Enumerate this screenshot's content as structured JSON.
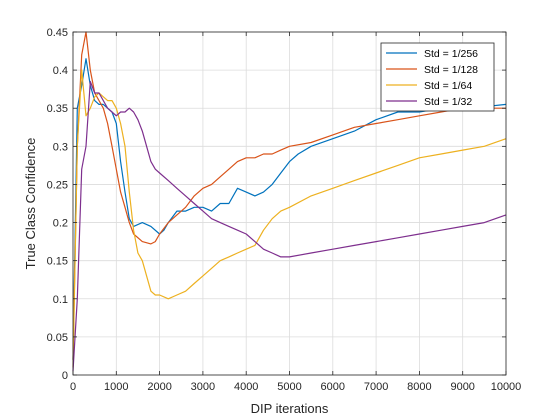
{
  "chart_data": {
    "type": "line",
    "title": "",
    "xlabel": "DIP iterations",
    "ylabel": "True Class Confidence",
    "xlim": [
      0,
      10000
    ],
    "ylim": [
      0,
      0.45
    ],
    "xticks": [
      0,
      1000,
      2000,
      3000,
      4000,
      5000,
      6000,
      7000,
      8000,
      9000,
      10000
    ],
    "xtick_labels": [
      "0",
      "1000",
      "2000",
      "3000",
      "4000",
      "5000",
      "6000",
      "7000",
      "8000",
      "9000",
      "10000"
    ],
    "yticks": [
      0,
      0.05,
      0.1,
      0.15,
      0.2,
      0.25,
      0.3,
      0.35,
      0.4,
      0.45
    ],
    "ytick_labels": [
      "0",
      "0.05",
      "0.1",
      "0.15",
      "0.2",
      "0.25",
      "0.3",
      "0.35",
      "0.4",
      "0.45"
    ],
    "grid": true,
    "legend_position": "top-right",
    "series": [
      {
        "name": "Std = 1/256",
        "color": "#0072BD",
        "x": [
          0,
          100,
          200,
          300,
          400,
          500,
          600,
          700,
          800,
          900,
          1000,
          1100,
          1200,
          1300,
          1400,
          1600,
          1800,
          2000,
          2100,
          2200,
          2400,
          2600,
          2800,
          3000,
          3200,
          3400,
          3600,
          3800,
          4000,
          4200,
          4400,
          4600,
          4800,
          5000,
          5200,
          5500,
          6000,
          6500,
          7000,
          7500,
          8000,
          8500,
          9000,
          9500,
          10000
        ],
        "y": [
          0.02,
          0.35,
          0.38,
          0.415,
          0.38,
          0.36,
          0.355,
          0.355,
          0.35,
          0.345,
          0.33,
          0.28,
          0.24,
          0.205,
          0.195,
          0.2,
          0.195,
          0.185,
          0.19,
          0.2,
          0.215,
          0.215,
          0.22,
          0.22,
          0.215,
          0.225,
          0.225,
          0.245,
          0.24,
          0.235,
          0.24,
          0.25,
          0.265,
          0.28,
          0.29,
          0.3,
          0.31,
          0.32,
          0.335,
          0.345,
          0.345,
          0.35,
          0.35,
          0.352,
          0.355
        ]
      },
      {
        "name": "Std = 1/128",
        "color": "#D95319",
        "x": [
          0,
          100,
          200,
          300,
          400,
          500,
          600,
          700,
          800,
          900,
          1000,
          1100,
          1200,
          1300,
          1400,
          1600,
          1800,
          1900,
          2000,
          2200,
          2400,
          2600,
          2800,
          3000,
          3200,
          3400,
          3600,
          3800,
          4000,
          4200,
          4400,
          4600,
          4800,
          5000,
          5500,
          6000,
          6500,
          7000,
          7500,
          8000,
          8500,
          9000,
          9500,
          10000
        ],
        "y": [
          0.02,
          0.3,
          0.42,
          0.45,
          0.4,
          0.37,
          0.36,
          0.35,
          0.33,
          0.3,
          0.27,
          0.24,
          0.22,
          0.2,
          0.185,
          0.175,
          0.172,
          0.175,
          0.185,
          0.2,
          0.21,
          0.22,
          0.235,
          0.245,
          0.25,
          0.26,
          0.27,
          0.28,
          0.285,
          0.285,
          0.29,
          0.29,
          0.295,
          0.3,
          0.305,
          0.315,
          0.325,
          0.33,
          0.335,
          0.34,
          0.345,
          0.35,
          0.35,
          0.35
        ]
      },
      {
        "name": "Std = 1/64",
        "color": "#EDB120",
        "x": [
          0,
          100,
          200,
          300,
          400,
          500,
          600,
          700,
          800,
          900,
          1000,
          1100,
          1200,
          1300,
          1400,
          1500,
          1600,
          1700,
          1800,
          1900,
          2000,
          2200,
          2400,
          2600,
          2800,
          3000,
          3200,
          3400,
          3600,
          3800,
          4000,
          4200,
          4400,
          4600,
          4800,
          5000,
          5500,
          6000,
          6500,
          7000,
          7500,
          8000,
          8500,
          9000,
          9500,
          10000
        ],
        "y": [
          0.01,
          0.3,
          0.4,
          0.34,
          0.35,
          0.365,
          0.37,
          0.365,
          0.36,
          0.36,
          0.35,
          0.33,
          0.3,
          0.24,
          0.19,
          0.16,
          0.15,
          0.13,
          0.11,
          0.105,
          0.105,
          0.1,
          0.105,
          0.11,
          0.12,
          0.13,
          0.14,
          0.15,
          0.155,
          0.16,
          0.165,
          0.17,
          0.19,
          0.205,
          0.215,
          0.22,
          0.235,
          0.245,
          0.255,
          0.265,
          0.275,
          0.285,
          0.29,
          0.295,
          0.3,
          0.31
        ]
      },
      {
        "name": "Std = 1/32",
        "color": "#7E2F8E",
        "x": [
          0,
          100,
          200,
          300,
          400,
          500,
          600,
          700,
          800,
          900,
          1000,
          1100,
          1200,
          1300,
          1400,
          1500,
          1600,
          1700,
          1800,
          1900,
          2000,
          2200,
          2400,
          2600,
          2800,
          3000,
          3200,
          3400,
          3600,
          3800,
          4000,
          4200,
          4400,
          4600,
          4800,
          5000,
          5500,
          6000,
          6500,
          7000,
          7500,
          8000,
          8500,
          9000,
          9500,
          10000
        ],
        "y": [
          0.005,
          0.1,
          0.27,
          0.3,
          0.385,
          0.37,
          0.37,
          0.36,
          0.35,
          0.345,
          0.34,
          0.345,
          0.345,
          0.35,
          0.345,
          0.335,
          0.32,
          0.3,
          0.28,
          0.27,
          0.265,
          0.255,
          0.245,
          0.235,
          0.225,
          0.215,
          0.205,
          0.2,
          0.195,
          0.19,
          0.185,
          0.175,
          0.165,
          0.16,
          0.155,
          0.155,
          0.16,
          0.165,
          0.17,
          0.175,
          0.18,
          0.185,
          0.19,
          0.195,
          0.2,
          0.21
        ]
      }
    ]
  }
}
